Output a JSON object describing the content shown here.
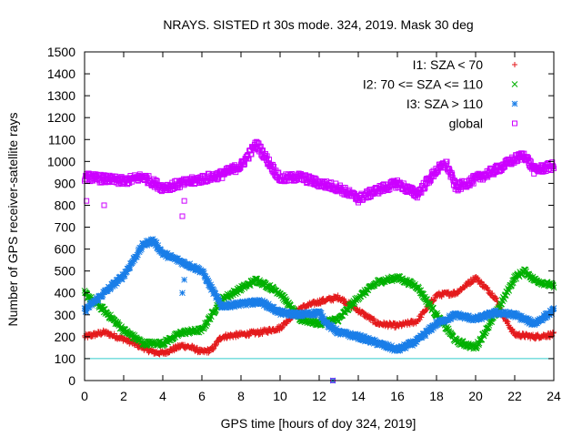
{
  "chart_data": {
    "type": "scatter",
    "title": "NRAYS. SISTED rt 30s mode. 324, 2019. Mask 30 deg",
    "xlabel": "GPS time [hours of doy 324, 2019]",
    "ylabel": "Number of GPS receiver-satellite rays",
    "xlim": [
      0,
      24
    ],
    "ylim": [
      0,
      1500
    ],
    "x_ticks": [
      0,
      2,
      4,
      6,
      8,
      10,
      12,
      14,
      16,
      18,
      20,
      22,
      24
    ],
    "y_ticks": [
      0,
      100,
      200,
      300,
      400,
      500,
      600,
      700,
      800,
      900,
      1000,
      1100,
      1200,
      1300,
      1400,
      1500
    ],
    "grid": false,
    "legend_position": "top-right",
    "reference_line": {
      "y": 100,
      "color": "#33cccc"
    },
    "series": [
      {
        "name": "I1: SZA < 70",
        "marker": "+",
        "color": "#e41a1c",
        "x": [
          0,
          1,
          2,
          3,
          3.5,
          4,
          5,
          5.5,
          6,
          6.5,
          7,
          8,
          9,
          10,
          11,
          12,
          13,
          14,
          15,
          16,
          17,
          18,
          19,
          20,
          21,
          21.5,
          22,
          23,
          24
        ],
        "values": [
          200,
          220,
          190,
          150,
          130,
          125,
          160,
          150,
          130,
          140,
          200,
          210,
          220,
          240,
          330,
          360,
          380,
          320,
          260,
          250,
          270,
          390,
          400,
          470,
          380,
          280,
          210,
          200,
          210
        ]
      },
      {
        "name": "I2: 70 <= SZA <= 110",
        "marker": "x",
        "color": "#00b000",
        "x": [
          0,
          1,
          2,
          3,
          4,
          5,
          6,
          7,
          8,
          8.8,
          10,
          11,
          12,
          13,
          14,
          15,
          16,
          17,
          18,
          19,
          20,
          21,
          22,
          22.5,
          23,
          24
        ],
        "values": [
          400,
          320,
          230,
          170,
          170,
          220,
          230,
          370,
          420,
          460,
          400,
          280,
          260,
          280,
          380,
          450,
          470,
          430,
          300,
          180,
          150,
          300,
          470,
          500,
          460,
          430
        ]
      },
      {
        "name": "I3: SZA > 110",
        "marker": "*",
        "color": "#1a7ee8",
        "x": [
          0,
          1,
          2,
          3,
          3.5,
          4,
          5,
          6,
          7,
          8,
          9,
          10,
          11,
          12,
          12.5,
          13,
          14,
          15,
          16,
          17,
          18,
          19,
          20,
          21,
          22,
          23,
          24
        ],
        "values": [
          320,
          400,
          480,
          620,
          640,
          580,
          540,
          500,
          340,
          350,
          360,
          310,
          300,
          310,
          250,
          220,
          200,
          170,
          140,
          180,
          260,
          300,
          280,
          310,
          300,
          260,
          320
        ]
      },
      {
        "name": "global",
        "marker": "square",
        "color": "#cc00ff",
        "x": [
          0,
          1,
          2,
          3,
          4,
          5,
          6,
          7,
          8,
          8.8,
          10,
          11,
          12,
          13,
          14,
          15,
          16,
          17,
          18,
          18.5,
          19,
          20,
          21,
          22,
          22.5,
          23,
          24
        ],
        "values": [
          930,
          920,
          910,
          930,
          880,
          900,
          920,
          940,
          980,
          1080,
          920,
          930,
          900,
          880,
          830,
          870,
          900,
          850,
          960,
          990,
          880,
          920,
          960,
          1010,
          1030,
          960,
          980
        ]
      }
    ],
    "outliers": [
      {
        "series": 3,
        "x": 0.1,
        "y": 820
      },
      {
        "series": 3,
        "x": 1.0,
        "y": 800
      },
      {
        "series": 3,
        "x": 5.0,
        "y": 750
      },
      {
        "series": 3,
        "x": 5.1,
        "y": 820
      },
      {
        "series": 2,
        "x": 5.0,
        "y": 400
      },
      {
        "series": 2,
        "x": 5.1,
        "y": 460
      },
      {
        "series": 3,
        "x": 12.7,
        "y": 0
      },
      {
        "series": 0,
        "x": 12.7,
        "y": 0
      },
      {
        "series": 2,
        "x": 12.7,
        "y": 0
      }
    ]
  }
}
